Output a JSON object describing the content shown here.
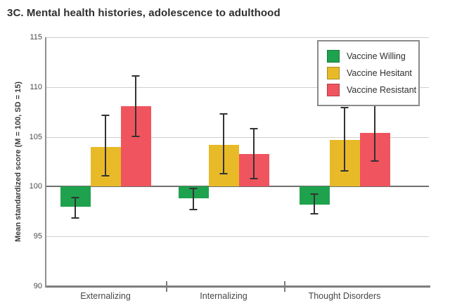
{
  "chart_data": {
    "type": "bar",
    "title": "3C. Mental health histories, adolescence to adulthood",
    "ylabel": "Mean standardized score (M = 100, SD = 15)",
    "xlabel": "",
    "categories": [
      "Externalizing",
      "Internalizing",
      "Thought Disorders"
    ],
    "series": [
      {
        "name": "Vaccine Willing",
        "color": "#1fa24e",
        "values": [
          98.0,
          98.8,
          98.2
        ],
        "error_low": [
          96.8,
          97.6,
          97.2
        ],
        "error_high": [
          99.0,
          99.9,
          99.3
        ]
      },
      {
        "name": "Vaccine Hesitant",
        "color": "#e8ba28",
        "values": [
          104.0,
          104.2,
          104.7
        ],
        "error_low": [
          101.0,
          101.2,
          101.5
        ],
        "error_high": [
          107.2,
          107.4,
          108.0
        ]
      },
      {
        "name": "Vaccine Resistant",
        "color": "#f0545f",
        "values": [
          108.1,
          103.3,
          105.4
        ],
        "error_low": [
          105.0,
          100.7,
          102.5
        ],
        "error_high": [
          111.2,
          105.9,
          108.3
        ]
      }
    ],
    "ylim": [
      90,
      115
    ],
    "yticks": [
      90,
      95,
      100,
      105,
      110,
      115
    ],
    "baseline": 100,
    "grid": true,
    "legend_position": "top-right",
    "colors": {
      "grid": "#cfcfcf",
      "baseline_line": "#6f6f6f",
      "axis": "#7d7d7d",
      "error_bar": "#333333",
      "tick_text": "#4a4a4a",
      "label_text": "#474747",
      "title_text": "#2e2e2e"
    }
  }
}
